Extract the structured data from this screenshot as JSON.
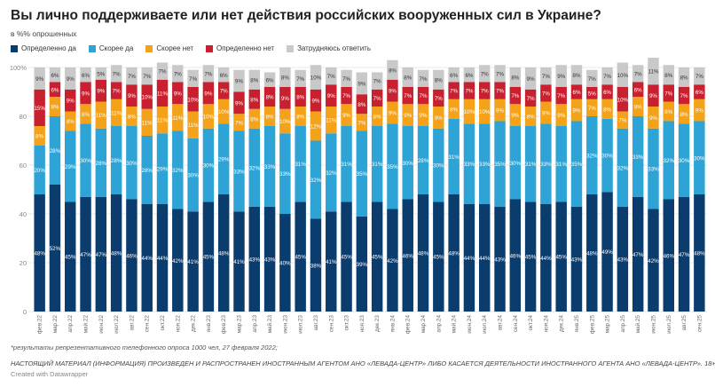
{
  "title": "Вы лично поддерживаете или нет действия российских вооруженных сил в Украине?",
  "subtitle": "в %% опрошенных",
  "note": "*результаты репрезентативного телефонного опроса 1000 чел, 27 февраля 2022;",
  "disclaimer": "НАСТОЯЩИЙ МАТЕРИАЛ (ИНФОРМАЦИЯ) ПРОИЗВЕДЕН И РАСПРОСТРАНЕН ИНОСТРАННЫМ АГЕНТОМ АНО «ЛЕВАДА-ЦЕНТР» ЛИБО КАСАЕТСЯ ДЕЯТЕЛЬНОСТИ ИНОСТРАННОГО АГЕНТА АНО «ЛЕВАДА-ЦЕНТР». 18+",
  "credit": "Created with Datawrapper",
  "chart_data": {
    "type": "bar",
    "stacked": true,
    "orientation": "vertical",
    "ylim": [
      0,
      100
    ],
    "yticks": [
      0,
      20,
      40,
      60,
      80,
      100
    ],
    "ytick_labels": [
      "0",
      "20",
      "40",
      "60",
      "80",
      "100%"
    ],
    "grid": true,
    "legend_position": "top-left",
    "value_label_suffix": "%",
    "categories": [
      "фев.22",
      "мар.22",
      "апр.22",
      "май.22",
      "июн.22",
      "июл.22",
      "авг.22",
      "сен.22",
      "окт.22",
      "ноя.22",
      "дек.22",
      "янв.23",
      "фев.23",
      "мар.23",
      "апр.23",
      "май.23",
      "июн.23",
      "июл.23",
      "авг.23",
      "сен.23",
      "окт.23",
      "ноя.23",
      "дек.23",
      "янв.24",
      "фев.24",
      "мар.24",
      "апр.24",
      "май.24",
      "июн.24",
      "июл.24",
      "авг.24",
      "сен.24",
      "окт.24",
      "ноя.24",
      "дек.24",
      "янв.25",
      "фев.25",
      "мар.25",
      "апр.25",
      "май.25",
      "июн.25",
      "июл.25",
      "авг.25",
      "сен.25"
    ],
    "series": [
      {
        "name": "Определенно да",
        "color": "#0b3c6e",
        "values": [
          48,
          52,
          45,
          47,
          47,
          48,
          46,
          44,
          44,
          42,
          41,
          45,
          48,
          41,
          43,
          43,
          40,
          45,
          38,
          41,
          45,
          39,
          45,
          42,
          46,
          48,
          45,
          48,
          44,
          44,
          43,
          46,
          45,
          44,
          45,
          43,
          48,
          49,
          43,
          47,
          42,
          46,
          47,
          48
        ]
      },
      {
        "name": "Скорее да",
        "color": "#2da3d6",
        "values": [
          20,
          28,
          29,
          30,
          28,
          28,
          30,
          28,
          29,
          32,
          30,
          30,
          29,
          33,
          32,
          33,
          33,
          31,
          32,
          32,
          31,
          35,
          31,
          35,
          30,
          28,
          30,
          31,
          33,
          33,
          35,
          30,
          31,
          33,
          31,
          35,
          32,
          30,
          32,
          33,
          33,
          32,
          30,
          30
        ]
      },
      {
        "name": "Скорее нет",
        "color": "#f3a21a",
        "values": [
          8,
          8,
          8,
          8,
          11,
          11,
          8,
          11,
          11,
          11,
          11,
          10,
          10,
          7,
          8,
          8,
          10,
          8,
          12,
          11,
          9,
          7,
          8,
          9,
          9,
          9,
          9,
          8,
          10,
          10,
          9,
          9,
          8,
          9,
          9,
          9,
          7,
          8,
          7,
          8,
          9,
          8,
          8,
          9
        ]
      },
      {
        "name": "Определенно нет",
        "color": "#c8202f",
        "values": [
          15,
          6,
          9,
          9,
          9,
          7,
          9,
          10,
          11,
          9,
          10,
          9,
          7,
          9,
          8,
          8,
          9,
          8,
          9,
          9,
          7,
          8,
          7,
          9,
          7,
          7,
          7,
          7,
          7,
          7,
          7,
          7,
          7,
          7,
          7,
          6,
          5,
          6,
          10,
          6,
          9,
          7,
          7,
          6
        ]
      },
      {
        "name": "Затрудняюсь ответить",
        "color": "#c9c9c9",
        "values": [
          9,
          6,
          9,
          6,
          5,
          7,
          7,
          7,
          7,
          7,
          7,
          7,
          6,
          9,
          8,
          6,
          8,
          7,
          10,
          7,
          7,
          9,
          7,
          8,
          8,
          7,
          8,
          6,
          6,
          7,
          7,
          8,
          9,
          7,
          9,
          8,
          7,
          7,
          10,
          7,
          11,
          8,
          8,
          7
        ]
      }
    ]
  }
}
